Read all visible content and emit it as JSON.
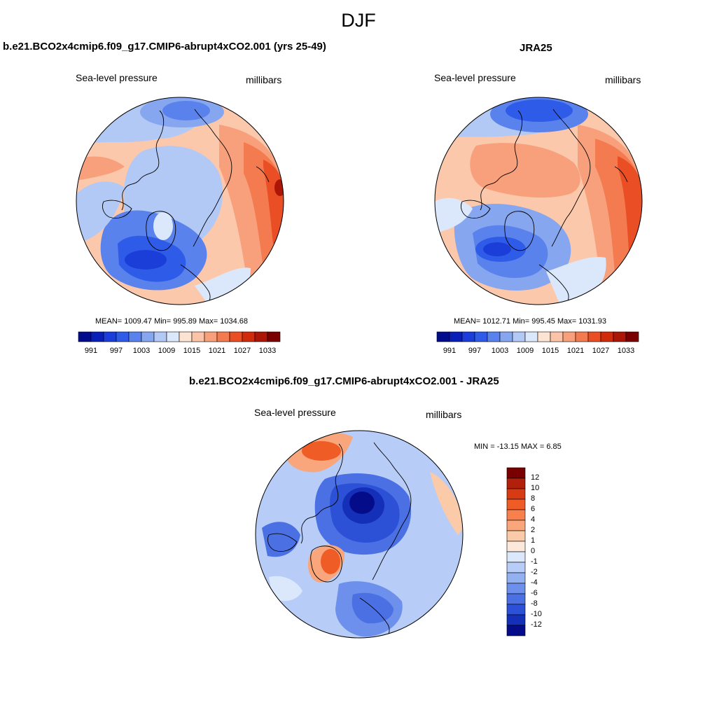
{
  "figure": {
    "season": "DJF"
  },
  "panels": [
    {
      "id": "model",
      "title": "b.e21.BCO2x4cmip6.f09_g17.CMIP6-abrupt4xCO2.001 (yrs 25-49)",
      "left_label": "Sea-level pressure",
      "right_label": "millibars",
      "stats_text": "MEAN= 1009.47  Min= 995.89  Max= 1034.68"
    },
    {
      "id": "obs",
      "title": "JRA25",
      "left_label": "Sea-level pressure",
      "right_label": "millibars",
      "stats_text": "MEAN= 1012.71  Min= 995.45  Max= 1031.93"
    },
    {
      "id": "diff",
      "title": "b.e21.BCO2x4cmip6.f09_g17.CMIP6-abrupt4xCO2.001 - JRA25",
      "left_label": "Sea-level pressure",
      "right_label": "millibars",
      "stats_text": "MIN = -13.15 MAX =   6.85"
    }
  ],
  "colorbar_abs": {
    "colors": [
      "#000c8c",
      "#0a1fb8",
      "#1c3ed8",
      "#2e5ce8",
      "#5a82ec",
      "#86a6f0",
      "#b2c8f5",
      "#dbe8fb",
      "#fde3d2",
      "#fbc4a8",
      "#f8a07c",
      "#f47a50",
      "#ea4e24",
      "#d02c0c",
      "#ac1606",
      "#7a0000"
    ],
    "tick_labels": [
      "991",
      "997",
      "1003",
      "1009",
      "1015",
      "1021",
      "1027",
      "1033"
    ]
  },
  "colorbar_diff": {
    "colors": [
      "#7a0000",
      "#b0200a",
      "#d83b14",
      "#f05c26",
      "#f8804c",
      "#f9a67c",
      "#fbcaa8",
      "#fde9dc",
      "#dbe8fb",
      "#b7ccf6",
      "#93b1f1",
      "#6c90eb",
      "#4a70e4",
      "#2c50d6",
      "#1430b8",
      "#050c8a"
    ],
    "tick_labels": [
      "12",
      "10",
      "8",
      "6",
      "4",
      "2",
      "1",
      "0",
      "-1",
      "-2",
      "-4",
      "-6",
      "-8",
      "-10",
      "-12"
    ]
  },
  "chart_data": [
    {
      "type": "heatmap",
      "title": "b.e21.BCO2x4cmip6.f09_g17.CMIP6-abrupt4xCO2.001 (yrs 25-49)",
      "variable": "Sea-level pressure",
      "units": "millibars",
      "projection": "north polar stereographic",
      "mean": 1009.47,
      "min": 995.89,
      "max": 1034.68,
      "contour_levels": [
        991,
        994,
        997,
        1000,
        1003,
        1006,
        1009,
        1012,
        1015,
        1018,
        1021,
        1024,
        1027,
        1030,
        1033
      ]
    },
    {
      "type": "heatmap",
      "title": "JRA25",
      "variable": "Sea-level pressure",
      "units": "millibars",
      "projection": "north polar stereographic",
      "mean": 1012.71,
      "min": 995.45,
      "max": 1031.93,
      "contour_levels": [
        991,
        994,
        997,
        1000,
        1003,
        1006,
        1009,
        1012,
        1015,
        1018,
        1021,
        1024,
        1027,
        1030,
        1033
      ]
    },
    {
      "type": "heatmap",
      "title": "b.e21.BCO2x4cmip6.f09_g17.CMIP6-abrupt4xCO2.001 - JRA25",
      "variable": "Sea-level pressure",
      "units": "millibars",
      "projection": "north polar stereographic",
      "min": -13.15,
      "max": 6.85,
      "contour_levels": [
        -12,
        -10,
        -8,
        -6,
        -4,
        -2,
        -1,
        0,
        1,
        2,
        4,
        6,
        8,
        10,
        12
      ]
    }
  ]
}
